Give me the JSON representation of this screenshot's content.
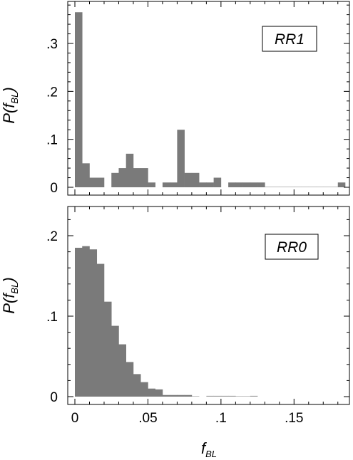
{
  "chart_data": [
    {
      "type": "bar",
      "panel_label": "RR1",
      "ylabel": "P(f",
      "ylabel_sub": "BL",
      "ylabel_close": ")",
      "xlim": [
        -0.005,
        0.19
      ],
      "ylim": [
        0,
        0.38
      ],
      "bin_width": 0.005,
      "bins_start": [
        0.0,
        0.005,
        0.01,
        0.015,
        0.025,
        0.03,
        0.035,
        0.04,
        0.045,
        0.05,
        0.06,
        0.065,
        0.07,
        0.075,
        0.08,
        0.085,
        0.09,
        0.095,
        0.105,
        0.11,
        0.115,
        0.12,
        0.125,
        0.13,
        0.135,
        0.14,
        0.145,
        0.15,
        0.155,
        0.16,
        0.165,
        0.17,
        0.175,
        0.18
      ],
      "values": [
        0.365,
        0.05,
        0.02,
        0.02,
        0.03,
        0.04,
        0.07,
        0.04,
        0.04,
        0.01,
        0.01,
        0.01,
        0.12,
        0.03,
        0.03,
        0.01,
        0.01,
        0.02,
        0.01,
        0.01,
        0.01,
        0.01,
        0.01,
        0.001,
        0.001,
        0.001,
        0.001,
        0.001,
        0.001,
        0.001,
        0.001,
        0.001,
        0.001,
        0.01
      ],
      "yticks": [
        0,
        0.1,
        0.2,
        0.3
      ],
      "ytick_labels": [
        "0",
        ".1",
        ".2",
        ".3"
      ],
      "xticks": [
        0,
        0.05,
        0.1,
        0.15
      ]
    },
    {
      "type": "bar",
      "panel_label": "RR0",
      "ylabel": "P(f",
      "ylabel_sub": "BL",
      "ylabel_close": ")",
      "xlabel": "f",
      "xlabel_sub": "BL",
      "xlim": [
        -0.005,
        0.19
      ],
      "ylim": [
        0,
        0.235
      ],
      "bin_width": 0.005,
      "bins_start": [
        0.0,
        0.005,
        0.01,
        0.015,
        0.02,
        0.025,
        0.03,
        0.035,
        0.04,
        0.045,
        0.05,
        0.055,
        0.06,
        0.065,
        0.07,
        0.075,
        0.08,
        0.09,
        0.095,
        0.1,
        0.105,
        0.11,
        0.115,
        0.12
      ],
      "values": [
        0.185,
        0.187,
        0.183,
        0.165,
        0.118,
        0.088,
        0.065,
        0.043,
        0.028,
        0.018,
        0.01,
        0.009,
        0.002,
        0.002,
        0.002,
        0.002,
        0.0,
        0.001,
        0.001,
        0.001,
        0.001,
        0.0,
        0.0,
        0.001
      ],
      "yticks": [
        0,
        0.1,
        0.2
      ],
      "ytick_labels": [
        "0",
        ".1",
        ".2"
      ],
      "xticks": [
        0,
        0.05,
        0.1,
        0.15
      ],
      "xtick_labels": [
        "0",
        ".05",
        ".1",
        ".15"
      ]
    }
  ]
}
